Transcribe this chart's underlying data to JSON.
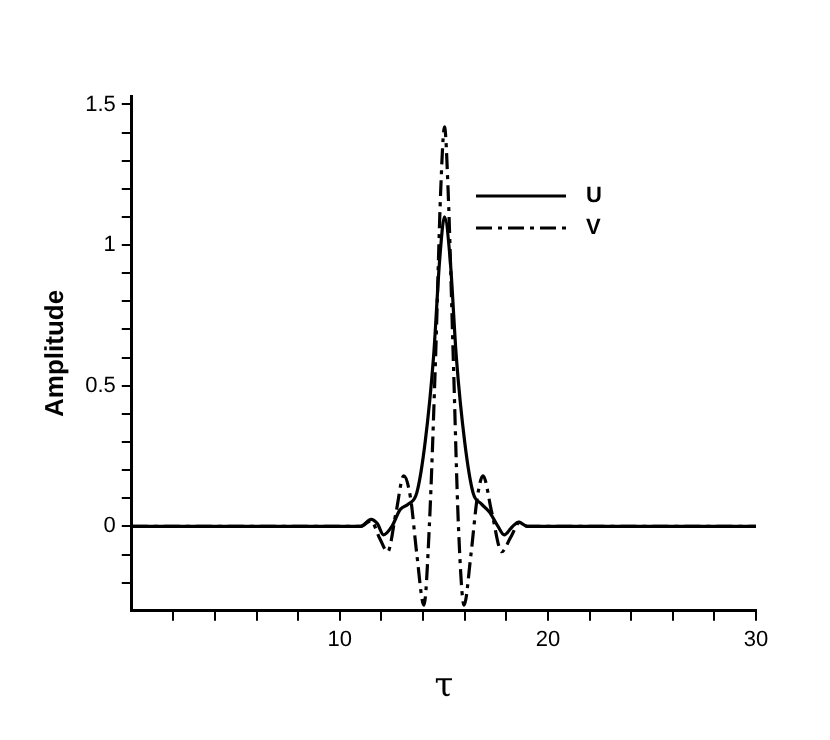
{
  "chart_data": {
    "type": "line",
    "xlabel": "τ",
    "ylabel": "Amplitude",
    "xlim": [
      0,
      30
    ],
    "ylim": [
      -0.3,
      1.53
    ],
    "xticks": [
      {
        "value": 2,
        "label": null
      },
      {
        "value": 4,
        "label": null
      },
      {
        "value": 6,
        "label": null
      },
      {
        "value": 8,
        "label": null
      },
      10,
      {
        "value": 12,
        "label": null
      },
      {
        "value": 14,
        "label": null
      },
      {
        "value": 16,
        "label": null
      },
      {
        "value": 18,
        "label": null
      },
      20,
      {
        "value": 22,
        "label": null
      },
      {
        "value": 24,
        "label": null
      },
      {
        "value": 26,
        "label": null
      },
      {
        "value": 28,
        "label": null
      },
      30
    ],
    "yticks": [
      {
        "value": -0.2,
        "label": null
      },
      {
        "value": -0.1,
        "label": null
      },
      0,
      {
        "value": 0.1,
        "label": null
      },
      {
        "value": 0.2,
        "label": null
      },
      {
        "value": 0.3,
        "label": null
      },
      {
        "value": 0.4,
        "label": null
      },
      0.5,
      {
        "value": 0.6,
        "label": null
      },
      {
        "value": 0.7,
        "label": null
      },
      {
        "value": 0.8,
        "label": null
      },
      {
        "value": 0.9,
        "label": null
      },
      1,
      {
        "value": 1.1,
        "label": null
      },
      {
        "value": 1.2,
        "label": null
      },
      {
        "value": 1.3,
        "label": null
      },
      {
        "value": 1.4,
        "label": null
      },
      1.5
    ],
    "grid": false,
    "legend": "top right",
    "marker": "none",
    "series": [
      {
        "name": "U",
        "color": "#000000",
        "line_style": "solid",
        "x": [
          0,
          11,
          11.5,
          11.8,
          12.1,
          12.5,
          12.9,
          13.3,
          13.7,
          14.1,
          14.5,
          14.8,
          15.03,
          15.3,
          15.6,
          16,
          16.4,
          16.8,
          17.2,
          17.6,
          17.9,
          18.3,
          18.6,
          19,
          30
        ],
        "values": [
          0,
          0,
          0.025,
          0.01,
          -0.03,
          0,
          0.06,
          0.08,
          0.12,
          0.3,
          0.6,
          0.95,
          1.1,
          0.95,
          0.6,
          0.3,
          0.12,
          0.08,
          0.05,
          0,
          -0.03,
          0,
          0.015,
          0,
          0
        ]
      },
      {
        "name": "V",
        "color": "#000000",
        "line_style": "dashed",
        "x": [
          0,
          11,
          11.5,
          11.9,
          12.3,
          12.7,
          13.07,
          13.4,
          13.7,
          14.04,
          14.3,
          14.6,
          14.85,
          15.03,
          15.2,
          15.45,
          15.7,
          15.97,
          16.3,
          16.6,
          16.88,
          17.3,
          17.78,
          18.2,
          18.65,
          19,
          30
        ],
        "values": [
          0,
          0,
          0.02,
          -0.04,
          -0.09,
          0.05,
          0.18,
          0.1,
          -0.1,
          -0.28,
          0,
          0.6,
          1.2,
          1.42,
          1.2,
          0.6,
          0,
          -0.28,
          -0.1,
          0.1,
          0.18,
          0.05,
          -0.09,
          -0.04,
          0.015,
          0,
          0
        ]
      }
    ]
  }
}
